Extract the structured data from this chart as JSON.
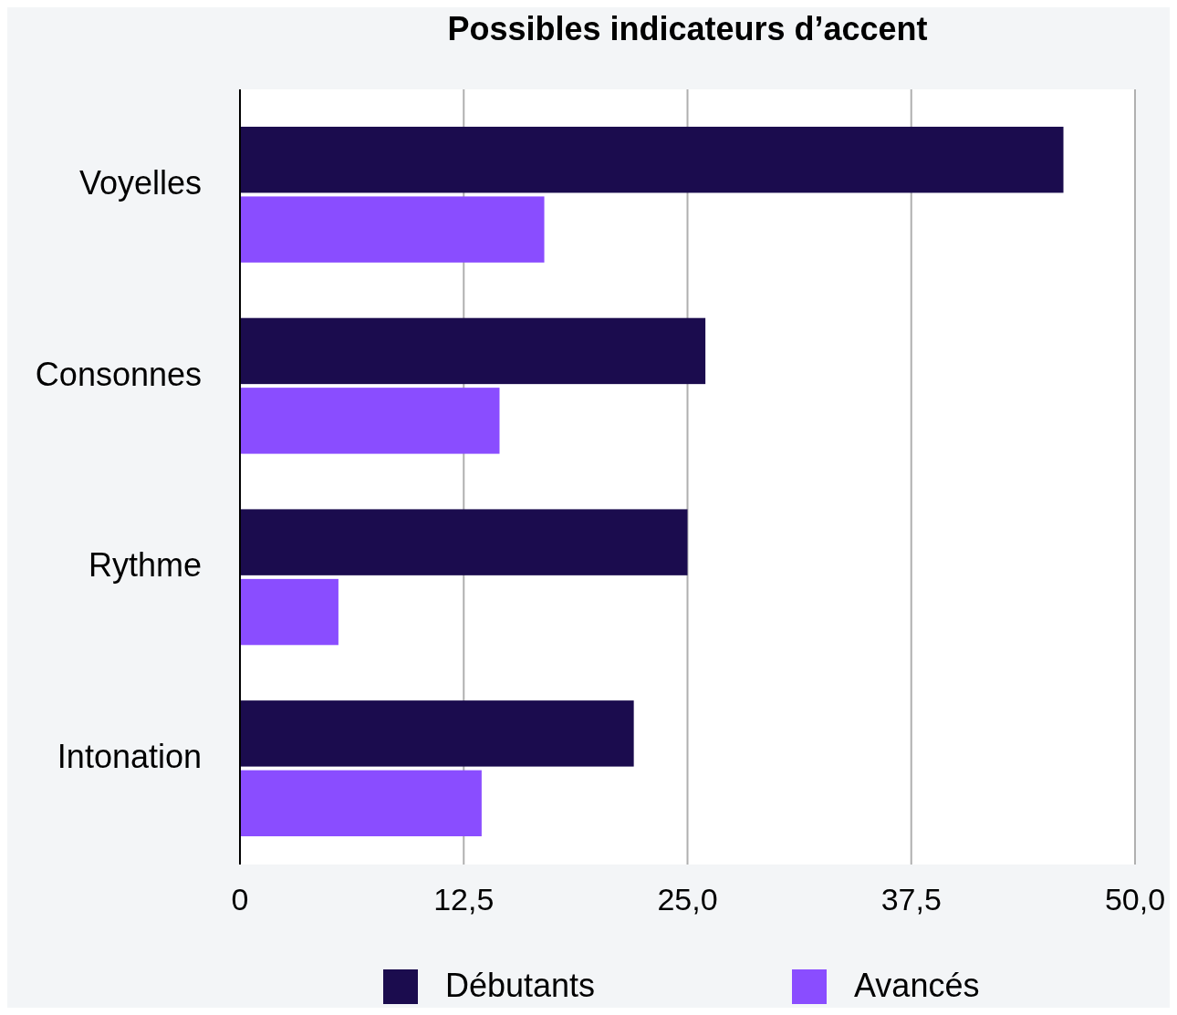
{
  "chart_data": {
    "type": "bar",
    "orientation": "horizontal",
    "title": "Possibles indicateurs d’accent",
    "categories": [
      "Voyelles",
      "Consonnes",
      "Rythme",
      "Intonation"
    ],
    "series": [
      {
        "name": "Débutants",
        "color": "#1b0c4e",
        "values": [
          46,
          26,
          25,
          22
        ]
      },
      {
        "name": "Avancés",
        "color": "#8a4dff",
        "values": [
          17,
          14.5,
          5.5,
          13.5
        ]
      }
    ],
    "xlim": [
      0,
      50
    ],
    "xticks": [
      0,
      {
        "value": 12.5,
        "label": "12,5"
      },
      {
        "value": 25,
        "label": "25,0"
      },
      {
        "value": 37.5,
        "label": "37,5"
      },
      {
        "value": 50,
        "label": "50,0"
      }
    ],
    "grid": "x",
    "legend": "bottom"
  }
}
